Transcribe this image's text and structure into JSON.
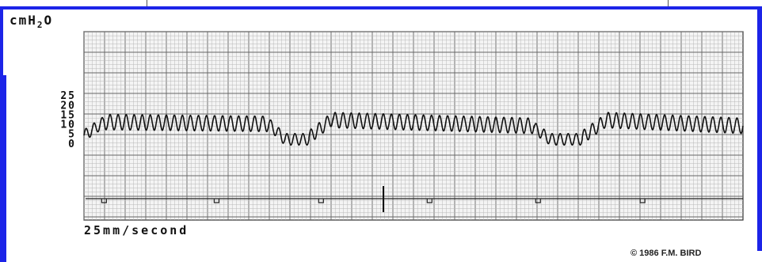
{
  "figure": {
    "unit_label_main": "cmH",
    "unit_label_sub": "2",
    "unit_label_tail": "O",
    "speed_label": "25mm/second",
    "copyright": "© 1986 F.M. BIRD"
  },
  "chart_data": {
    "type": "line",
    "title": "",
    "xlabel": "25mm/second",
    "ylabel": "cmH2O",
    "yticks": [
      "25",
      "20",
      "15",
      "10",
      "5",
      "0"
    ],
    "ytick_values": [
      25,
      20,
      15,
      10,
      5,
      0
    ],
    "ylim": [
      -40,
      58
    ],
    "grid": true,
    "series": [
      {
        "segments": [
          {
            "x0": 0,
            "x1": 5,
            "mean_start": 4,
            "mean_end": 11,
            "amplitude": 3
          },
          {
            "x0": 5,
            "x1": 46,
            "mean_start": 11,
            "mean_end": 10,
            "amplitude": 4
          },
          {
            "x0": 46,
            "x1": 50,
            "mean_start": 10,
            "mean_end": 2,
            "amplitude": 3
          },
          {
            "x0": 50,
            "x1": 56,
            "mean_start": 2,
            "mean_end": 2,
            "amplitude": 3
          },
          {
            "x0": 56,
            "x1": 62,
            "mean_start": 3,
            "mean_end": 13,
            "amplitude": 3.5
          },
          {
            "x0": 62,
            "x1": 112,
            "mean_start": 12,
            "mean_end": 9,
            "amplitude": 4
          },
          {
            "x0": 112,
            "x1": 116,
            "mean_start": 8,
            "mean_end": 2,
            "amplitude": 3
          },
          {
            "x0": 116,
            "x1": 124,
            "mean_start": 2,
            "mean_end": 2,
            "amplitude": 3
          },
          {
            "x0": 124,
            "x1": 130,
            "mean_start": 3,
            "mean_end": 12,
            "amplitude": 3.5
          },
          {
            "x0": 130,
            "x1": 164,
            "mean_start": 12,
            "mean_end": 9,
            "amplitude": 4
          }
        ],
        "oscillation_period": 2
      }
    ],
    "xlim": [
      0,
      164
    ],
    "marker_events": [
      5,
      33,
      59,
      86,
      113,
      139,
      166
    ]
  }
}
